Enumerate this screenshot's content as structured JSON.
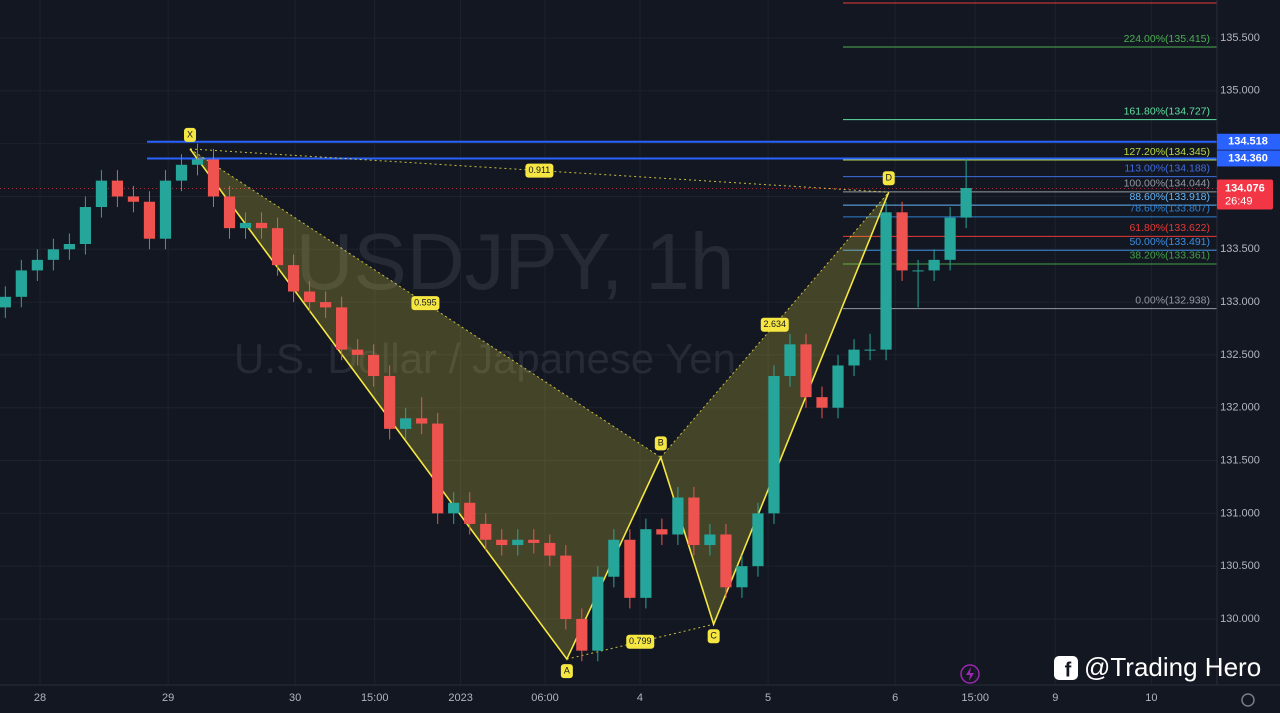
{
  "chart_data": {
    "type": "candlestick",
    "title": "USDJPY, 1h",
    "subtitle": "U.S. Dollar / Japanese Yen",
    "brand": "@Trading Hero",
    "up_color": "#26a69a",
    "down_color": "#ef5350",
    "x": [
      1,
      4,
      7,
      10,
      13,
      16,
      19,
      22,
      25,
      28,
      31,
      34,
      37,
      40,
      43,
      46,
      49,
      52,
      55,
      58,
      61,
      64,
      67,
      70,
      73,
      76,
      79,
      82,
      85,
      88,
      91,
      94,
      97,
      100,
      103,
      106,
      109,
      112,
      115,
      118,
      121,
      124,
      127,
      130,
      133,
      136,
      139,
      142,
      145,
      148,
      151,
      154,
      157,
      160,
      163,
      166,
      169,
      172,
      175,
      178,
      181
    ],
    "open": [
      132.95,
      133.05,
      133.3,
      133.4,
      133.5,
      133.55,
      133.9,
      134.15,
      134.0,
      133.95,
      133.6,
      134.15,
      134.3,
      134.35,
      134.0,
      133.7,
      133.75,
      133.7,
      133.35,
      133.1,
      133.0,
      132.95,
      132.55,
      132.5,
      132.3,
      131.8,
      131.9,
      131.85,
      131.0,
      131.1,
      130.9,
      130.75,
      130.7,
      130.75,
      130.72,
      130.6,
      130.0,
      129.7,
      130.4,
      130.75,
      130.2,
      130.85,
      130.8,
      131.15,
      130.7,
      130.8,
      130.3,
      130.5,
      131.0,
      132.3,
      132.6,
      132.1,
      132.0,
      132.4,
      132.55,
      132.55,
      133.85,
      133.3,
      133.3,
      133.4,
      133.8
    ],
    "high": [
      133.15,
      133.4,
      133.5,
      133.6,
      133.65,
      134.0,
      134.25,
      134.25,
      134.1,
      134.05,
      134.25,
      134.4,
      134.5,
      134.45,
      134.1,
      133.85,
      133.85,
      133.8,
      133.45,
      133.2,
      133.1,
      133.05,
      132.65,
      132.6,
      132.4,
      132.0,
      132.1,
      131.95,
      131.2,
      131.2,
      131.0,
      130.85,
      130.85,
      130.85,
      130.8,
      130.7,
      130.1,
      130.5,
      130.85,
      130.85,
      130.95,
      130.95,
      131.25,
      131.25,
      130.9,
      130.9,
      130.6,
      131.1,
      132.4,
      132.7,
      132.7,
      132.2,
      132.5,
      132.65,
      132.7,
      133.95,
      133.95,
      133.4,
      133.5,
      133.9,
      134.35
    ],
    "low": [
      132.85,
      132.95,
      133.2,
      133.3,
      133.4,
      133.45,
      133.8,
      133.9,
      133.85,
      133.5,
      133.5,
      134.05,
      134.2,
      133.9,
      133.6,
      133.6,
      133.6,
      133.25,
      133.0,
      132.9,
      132.85,
      132.45,
      132.4,
      132.2,
      131.7,
      131.7,
      131.75,
      130.9,
      130.9,
      130.8,
      130.65,
      130.6,
      130.6,
      130.62,
      130.5,
      129.9,
      129.6,
      129.6,
      130.3,
      130.1,
      130.1,
      130.7,
      130.7,
      130.6,
      130.6,
      130.2,
      130.2,
      130.4,
      130.9,
      132.2,
      132.0,
      131.9,
      131.9,
      132.3,
      132.45,
      132.45,
      133.2,
      132.95,
      133.2,
      133.3,
      133.7
    ],
    "close": [
      133.05,
      133.3,
      133.4,
      133.5,
      133.55,
      133.9,
      134.15,
      134.0,
      133.95,
      133.6,
      134.15,
      134.3,
      134.35,
      134.0,
      133.7,
      133.75,
      133.7,
      133.35,
      133.1,
      133.0,
      132.95,
      132.55,
      132.5,
      132.3,
      131.8,
      131.9,
      131.85,
      131.0,
      131.1,
      130.9,
      130.75,
      130.7,
      130.75,
      130.72,
      130.6,
      130.0,
      129.7,
      130.4,
      130.75,
      130.2,
      130.85,
      130.8,
      131.15,
      130.7,
      130.8,
      130.3,
      130.5,
      131.0,
      132.3,
      132.6,
      132.1,
      132.0,
      132.4,
      132.55,
      132.55,
      133.85,
      133.3,
      133.3,
      133.4,
      133.8,
      134.08
    ],
    "xlim": [
      0,
      228
    ],
    "ylim": [
      129.375,
      135.86
    ],
    "xticks": [
      {
        "value": 7.5,
        "label": "28"
      },
      {
        "value": 31.5,
        "label": "29"
      },
      {
        "value": 55.3,
        "label": "30"
      },
      {
        "value": 70.2,
        "label": "15:00"
      },
      {
        "value": 86.3,
        "label": "2023"
      },
      {
        "value": 102.1,
        "label": "06:00"
      },
      {
        "value": 119.9,
        "label": "4"
      },
      {
        "value": 143.9,
        "label": "5"
      },
      {
        "value": 167.7,
        "label": "6"
      },
      {
        "value": 182.7,
        "label": "15:00"
      },
      {
        "value": 197.7,
        "label": "9"
      },
      {
        "value": 215.7,
        "label": "10"
      }
    ],
    "yticks": [
      {
        "value": 135.5,
        "label": "135.500"
      },
      {
        "value": 135.0,
        "label": "135.000"
      },
      {
        "value": 134.5,
        "label": "134.500"
      },
      {
        "value": 134.0,
        "label": "134.000"
      },
      {
        "value": 133.5,
        "label": "133.500"
      },
      {
        "value": 133.0,
        "label": "133.000"
      },
      {
        "value": 132.5,
        "label": "132.500"
      },
      {
        "value": 132.0,
        "label": "132.000"
      },
      {
        "value": 131.5,
        "label": "131.500"
      },
      {
        "value": 131.0,
        "label": "131.000"
      },
      {
        "value": 130.5,
        "label": "130.500"
      },
      {
        "value": 130.0,
        "label": "130.000"
      }
    ],
    "pattern": {
      "color": "#f5e642",
      "points": [
        {
          "label": "X",
          "x": 35.6,
          "y": 134.45
        },
        {
          "label": "A",
          "x": 106.2,
          "y": 129.62
        },
        {
          "label": "B",
          "x": 123.8,
          "y": 131.53
        },
        {
          "label": "C",
          "x": 133.7,
          "y": 129.95
        },
        {
          "label": "D",
          "x": 166.5,
          "y": 134.04
        }
      ],
      "ratios": [
        0.911,
        0.595,
        0.799,
        2.634
      ]
    },
    "fib_levels": [
      {
        "label": "224.00%(135.415)",
        "value": 135.415,
        "color": "#4caf50"
      },
      {
        "label": "161.80%(134.727)",
        "value": 134.727,
        "color": "#5ee0a0"
      },
      {
        "label": "127.20%(134.345)",
        "value": 134.345,
        "color": "#b6d84a"
      },
      {
        "label": "113.00%(134.188)",
        "value": 134.188,
        "color": "#3f6de0"
      },
      {
        "label": "100.00%(134.044)",
        "value": 134.044,
        "color": "#9598a1"
      },
      {
        "label": "88.60%(133.918)",
        "value": 133.918,
        "color": "#64b5f6"
      },
      {
        "label": "78.60%(133.807)",
        "value": 133.807,
        "color": "#2f80d0"
      },
      {
        "label": "61.80%(133.622)",
        "value": 133.622,
        "color": "#e53935"
      },
      {
        "label": "50.00%(133.491)",
        "value": 133.491,
        "color": "#3d8de0"
      },
      {
        "label": "38.20%(133.361)",
        "value": 133.361,
        "color": "#43a047"
      },
      {
        "label": "0.00%(132.938)",
        "value": 132.938,
        "color": "#9598a1"
      }
    ],
    "price_lines": [
      {
        "value": 134.518,
        "label": "134.518",
        "color": "#2962ff"
      },
      {
        "value": 134.36,
        "label": "134.360",
        "color": "#2962ff"
      }
    ],
    "last_price": {
      "value": 134.076,
      "label": "134.076",
      "countdown": "26:49",
      "color": "#f23645"
    }
  }
}
